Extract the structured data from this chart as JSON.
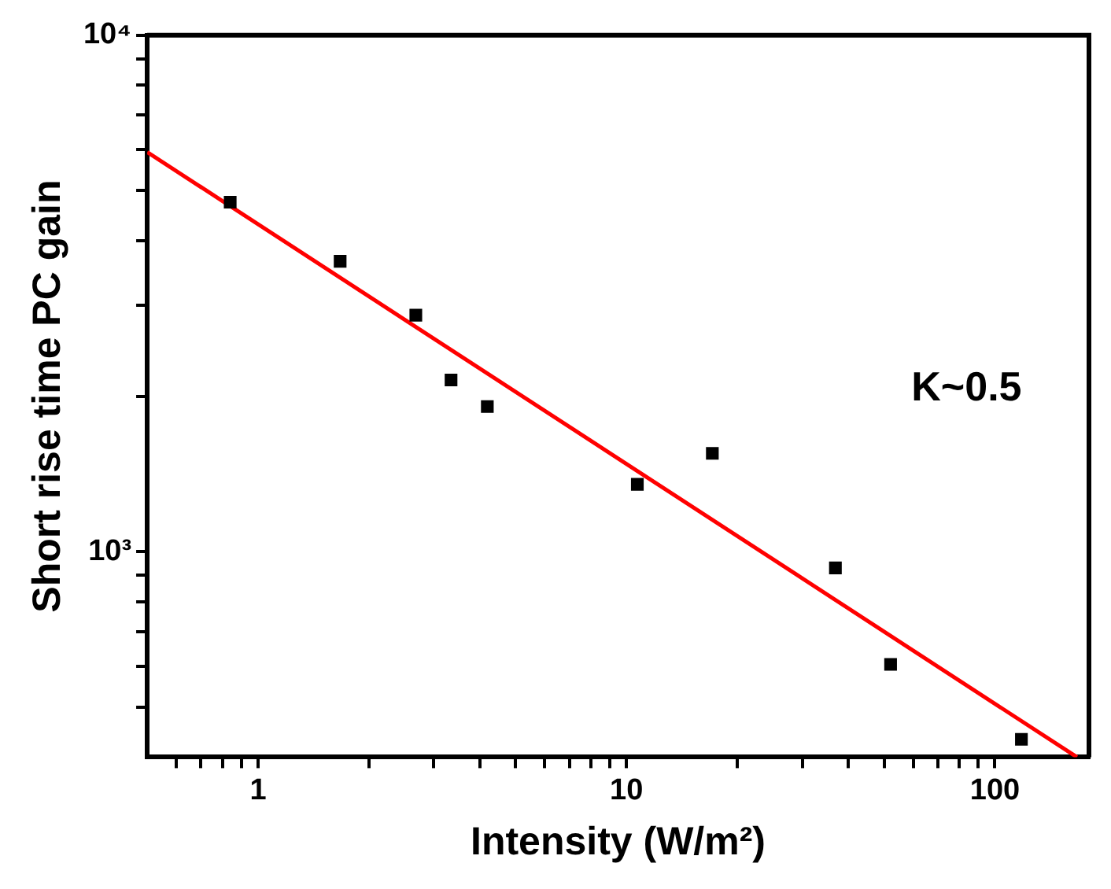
{
  "chart_data": {
    "type": "scatter",
    "xlabel": "Intensity (W/m²)",
    "ylabel": "Short rise time PC gain",
    "log": "xy",
    "grid": false,
    "legend": false,
    "marker": "square",
    "xlim": [
      0.5,
      180
    ],
    "ylim": [
      400,
      10000
    ],
    "xticks": [
      {
        "value": 0.6,
        "label": null
      },
      {
        "value": 0.7,
        "label": null
      },
      {
        "value": 0.8,
        "label": null
      },
      {
        "value": 0.9,
        "label": null
      },
      1,
      {
        "value": 2,
        "label": null
      },
      {
        "value": 3,
        "label": null
      },
      {
        "value": 4,
        "label": null
      },
      {
        "value": 5,
        "label": null
      },
      {
        "value": 6,
        "label": null
      },
      {
        "value": 7,
        "label": null
      },
      {
        "value": 8,
        "label": null
      },
      {
        "value": 9,
        "label": null
      },
      10,
      {
        "value": 20,
        "label": null
      },
      {
        "value": 30,
        "label": null
      },
      {
        "value": 40,
        "label": null
      },
      {
        "value": 50,
        "label": null
      },
      {
        "value": 60,
        "label": null
      },
      {
        "value": 70,
        "label": null
      },
      {
        "value": 80,
        "label": null
      },
      {
        "value": 90,
        "label": null
      },
      100
    ],
    "yticks": [
      {
        "value": 500,
        "label": null
      },
      {
        "value": 600,
        "label": null
      },
      {
        "value": 700,
        "label": null
      },
      {
        "value": 800,
        "label": null
      },
      {
        "value": 900,
        "label": null
      },
      {
        "value": 1000,
        "label": "10³"
      },
      {
        "value": 2000,
        "label": null
      },
      {
        "value": 3000,
        "label": null
      },
      {
        "value": 4000,
        "label": null
      },
      {
        "value": 5000,
        "label": null
      },
      {
        "value": 6000,
        "label": null
      },
      {
        "value": 7000,
        "label": null
      },
      {
        "value": 8000,
        "label": null
      },
      {
        "value": 9000,
        "label": null
      },
      {
        "value": 10000,
        "label": "10⁴"
      }
    ],
    "annotations": [
      "K~0.5"
    ],
    "series": [
      {
        "color": "#000000",
        "x": [
          0.84,
          1.67,
          2.68,
          3.34,
          4.19,
          10.7,
          17.1,
          36.9,
          52.1,
          118
        ],
        "values": [
          4750,
          3650,
          2870,
          2150,
          1910,
          1350,
          1550,
          930,
          605,
          433
        ]
      },
      {
        "type": "line",
        "color": "#ff0000",
        "marker": "none",
        "line_style": "solid",
        "x": [
          0.5,
          167
        ],
        "values": [
          5940,
          400
        ]
      }
    ]
  }
}
